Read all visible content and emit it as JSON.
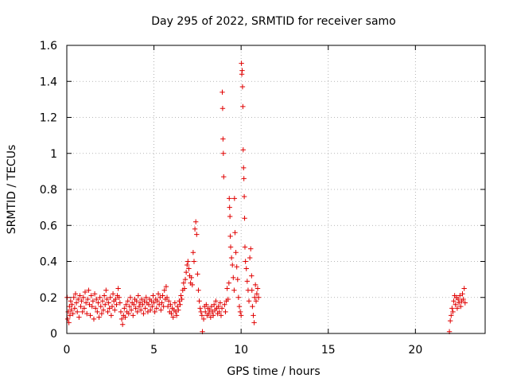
{
  "chart_data": {
    "type": "scatter",
    "title": "Day 295 of 2022, SRMTID for receiver samo",
    "xlabel": "GPS time / hours",
    "ylabel": "SRMTID / TECUs",
    "xlim": [
      0,
      24
    ],
    "ylim": [
      0,
      1.6
    ],
    "xticks": [
      0,
      5,
      10,
      15,
      20
    ],
    "xtick_labels": [
      "0",
      "5",
      "10",
      "15",
      "20"
    ],
    "yticks": [
      0,
      0.2,
      0.4,
      0.6,
      0.8,
      1,
      1.2,
      1.4,
      1.6
    ],
    "ytick_labels": [
      "0",
      "0.2",
      "0.4",
      "0.6",
      "0.8",
      "1",
      "1.2",
      "1.4",
      "1.6"
    ],
    "grid": true,
    "marker": "plus",
    "color": "#e00000",
    "series": [
      {
        "name": "SRMTID",
        "points": [
          [
            0.02,
            0.2
          ],
          [
            0.05,
            0.08
          ],
          [
            0.08,
            0.12
          ],
          [
            0.12,
            0.06
          ],
          [
            0.15,
            0.15
          ],
          [
            0.18,
            0.1
          ],
          [
            0.22,
            0.18
          ],
          [
            0.25,
            0.13
          ],
          [
            0.3,
            0.16
          ],
          [
            0.35,
            0.11
          ],
          [
            0.4,
            0.2
          ],
          [
            0.45,
            0.14
          ],
          [
            0.5,
            0.22
          ],
          [
            0.55,
            0.17
          ],
          [
            0.6,
            0.12
          ],
          [
            0.65,
            0.19
          ],
          [
            0.7,
            0.09
          ],
          [
            0.75,
            0.21
          ],
          [
            0.8,
            0.15
          ],
          [
            0.85,
            0.18
          ],
          [
            0.9,
            0.12
          ],
          [
            0.95,
            0.2
          ],
          [
            1.0,
            0.14
          ],
          [
            1.05,
            0.23
          ],
          [
            1.1,
            0.17
          ],
          [
            1.15,
            0.11
          ],
          [
            1.2,
            0.19
          ],
          [
            1.25,
            0.24
          ],
          [
            1.3,
            0.16
          ],
          [
            1.35,
            0.1
          ],
          [
            1.4,
            0.21
          ],
          [
            1.45,
            0.15
          ],
          [
            1.5,
            0.18
          ],
          [
            1.55,
            0.08
          ],
          [
            1.6,
            0.22
          ],
          [
            1.65,
            0.14
          ],
          [
            1.7,
            0.19
          ],
          [
            1.75,
            0.12
          ],
          [
            1.8,
            0.17
          ],
          [
            1.85,
            0.09
          ],
          [
            1.9,
            0.2
          ],
          [
            1.95,
            0.15
          ],
          [
            2.0,
            0.11
          ],
          [
            2.05,
            0.18
          ],
          [
            2.1,
            0.13
          ],
          [
            2.15,
            0.21
          ],
          [
            2.2,
            0.16
          ],
          [
            2.25,
            0.24
          ],
          [
            2.3,
            0.19
          ],
          [
            2.35,
            0.12
          ],
          [
            2.4,
            0.17
          ],
          [
            2.45,
            0.14
          ],
          [
            2.5,
            0.2
          ],
          [
            2.55,
            0.1
          ],
          [
            2.6,
            0.15
          ],
          [
            2.65,
            0.22
          ],
          [
            2.7,
            0.18
          ],
          [
            2.75,
            0.13
          ],
          [
            2.8,
            0.19
          ],
          [
            2.85,
            0.16
          ],
          [
            2.9,
            0.21
          ],
          [
            2.95,
            0.25
          ],
          [
            3.0,
            0.2
          ],
          [
            3.05,
            0.17
          ],
          [
            3.1,
            0.12
          ],
          [
            3.15,
            0.08
          ],
          [
            3.2,
            0.05
          ],
          [
            3.25,
            0.1
          ],
          [
            3.3,
            0.14
          ],
          [
            3.35,
            0.09
          ],
          [
            3.4,
            0.16
          ],
          [
            3.45,
            0.12
          ],
          [
            3.5,
            0.18
          ],
          [
            3.55,
            0.11
          ],
          [
            3.6,
            0.15
          ],
          [
            3.65,
            0.2
          ],
          [
            3.7,
            0.13
          ],
          [
            3.75,
            0.17
          ],
          [
            3.8,
            0.1
          ],
          [
            3.85,
            0.16
          ],
          [
            3.9,
            0.19
          ],
          [
            3.95,
            0.14
          ],
          [
            4.0,
            0.18
          ],
          [
            4.05,
            0.12
          ],
          [
            4.1,
            0.21
          ],
          [
            4.15,
            0.15
          ],
          [
            4.2,
            0.17
          ],
          [
            4.25,
            0.13
          ],
          [
            4.3,
            0.19
          ],
          [
            4.35,
            0.16
          ],
          [
            4.4,
            0.11
          ],
          [
            4.45,
            0.18
          ],
          [
            4.5,
            0.14
          ],
          [
            4.55,
            0.2
          ],
          [
            4.6,
            0.17
          ],
          [
            4.65,
            0.12
          ],
          [
            4.7,
            0.16
          ],
          [
            4.75,
            0.19
          ],
          [
            4.8,
            0.13
          ],
          [
            4.85,
            0.18
          ],
          [
            4.9,
            0.15
          ],
          [
            4.95,
            0.21
          ],
          [
            5.0,
            0.17
          ],
          [
            5.05,
            0.12
          ],
          [
            5.1,
            0.19
          ],
          [
            5.15,
            0.14
          ],
          [
            5.2,
            0.18
          ],
          [
            5.25,
            0.22
          ],
          [
            5.3,
            0.16
          ],
          [
            5.35,
            0.2
          ],
          [
            5.4,
            0.13
          ],
          [
            5.45,
            0.17
          ],
          [
            5.5,
            0.21
          ],
          [
            5.55,
            0.15
          ],
          [
            5.6,
            0.24
          ],
          [
            5.65,
            0.19
          ],
          [
            5.7,
            0.26
          ],
          [
            5.75,
            0.2
          ],
          [
            5.8,
            0.15
          ],
          [
            5.85,
            0.18
          ],
          [
            5.9,
            0.12
          ],
          [
            5.95,
            0.16
          ],
          [
            6.0,
            0.11
          ],
          [
            6.05,
            0.14
          ],
          [
            6.1,
            0.09
          ],
          [
            6.15,
            0.13
          ],
          [
            6.2,
            0.17
          ],
          [
            6.25,
            0.12
          ],
          [
            6.3,
            0.1
          ],
          [
            6.35,
            0.15
          ],
          [
            6.4,
            0.13
          ],
          [
            6.45,
            0.18
          ],
          [
            6.5,
            0.16
          ],
          [
            6.55,
            0.21
          ],
          [
            6.6,
            0.19
          ],
          [
            6.65,
            0.24
          ],
          [
            6.7,
            0.28
          ],
          [
            6.75,
            0.25
          ],
          [
            6.8,
            0.3
          ],
          [
            6.85,
            0.34
          ],
          [
            6.9,
            0.38
          ],
          [
            6.95,
            0.4
          ],
          [
            7.0,
            0.36
          ],
          [
            7.05,
            0.32
          ],
          [
            7.1,
            0.28
          ],
          [
            7.15,
            0.31
          ],
          [
            7.2,
            0.27
          ],
          [
            7.25,
            0.45
          ],
          [
            7.3,
            0.4
          ],
          [
            7.35,
            0.58
          ],
          [
            7.4,
            0.62
          ],
          [
            7.45,
            0.55
          ],
          [
            7.5,
            0.33
          ],
          [
            7.55,
            0.24
          ],
          [
            7.6,
            0.18
          ],
          [
            7.65,
            0.14
          ],
          [
            7.7,
            0.12
          ],
          [
            7.75,
            0.1
          ],
          [
            7.78,
            0.01
          ],
          [
            7.85,
            0.08
          ],
          [
            7.9,
            0.15
          ],
          [
            7.95,
            0.12
          ],
          [
            8.0,
            0.16
          ],
          [
            8.05,
            0.1
          ],
          [
            8.1,
            0.14
          ],
          [
            8.15,
            0.11
          ],
          [
            8.2,
            0.13
          ],
          [
            8.25,
            0.09
          ],
          [
            8.3,
            0.15
          ],
          [
            8.35,
            0.12
          ],
          [
            8.4,
            0.1
          ],
          [
            8.45,
            0.16
          ],
          [
            8.5,
            0.13
          ],
          [
            8.55,
            0.18
          ],
          [
            8.6,
            0.14
          ],
          [
            8.65,
            0.11
          ],
          [
            8.7,
            0.15
          ],
          [
            8.75,
            0.12
          ],
          [
            8.8,
            0.17
          ],
          [
            8.85,
            0.1
          ],
          [
            8.9,
            0.14
          ],
          [
            8.92,
            1.34
          ],
          [
            8.94,
            1.25
          ],
          [
            8.96,
            1.08
          ],
          [
            8.98,
            1.0
          ],
          [
            9.0,
            0.87
          ],
          [
            9.05,
            0.16
          ],
          [
            9.1,
            0.12
          ],
          [
            9.15,
            0.18
          ],
          [
            9.2,
            0.25
          ],
          [
            9.25,
            0.19
          ],
          [
            9.3,
            0.28
          ],
          [
            9.32,
            0.75
          ],
          [
            9.34,
            0.7
          ],
          [
            9.36,
            0.65
          ],
          [
            9.38,
            0.54
          ],
          [
            9.4,
            0.48
          ],
          [
            9.45,
            0.42
          ],
          [
            9.5,
            0.38
          ],
          [
            9.55,
            0.31
          ],
          [
            9.6,
            0.24
          ],
          [
            9.62,
            0.75
          ],
          [
            9.65,
            0.56
          ],
          [
            9.7,
            0.45
          ],
          [
            9.75,
            0.37
          ],
          [
            9.8,
            0.3
          ],
          [
            9.85,
            0.2
          ],
          [
            9.9,
            0.15
          ],
          [
            9.95,
            0.12
          ],
          [
            10.0,
            0.1
          ],
          [
            10.02,
            1.5
          ],
          [
            10.04,
            1.44
          ],
          [
            10.06,
            1.46
          ],
          [
            10.08,
            1.37
          ],
          [
            10.1,
            1.26
          ],
          [
            10.12,
            1.02
          ],
          [
            10.14,
            0.92
          ],
          [
            10.16,
            0.86
          ],
          [
            10.18,
            0.76
          ],
          [
            10.2,
            0.64
          ],
          [
            10.22,
            0.48
          ],
          [
            10.25,
            0.4
          ],
          [
            10.3,
            0.36
          ],
          [
            10.35,
            0.29
          ],
          [
            10.4,
            0.24
          ],
          [
            10.45,
            0.18
          ],
          [
            10.5,
            0.42
          ],
          [
            10.55,
            0.47
          ],
          [
            10.6,
            0.32
          ],
          [
            10.62,
            0.24
          ],
          [
            10.65,
            0.15
          ],
          [
            10.7,
            0.1
          ],
          [
            10.75,
            0.06
          ],
          [
            10.78,
            0.2
          ],
          [
            10.82,
            0.27
          ],
          [
            10.86,
            0.18
          ],
          [
            10.9,
            0.22
          ],
          [
            10.95,
            0.25
          ],
          [
            11.0,
            0.2
          ],
          [
            21.95,
            0.01
          ],
          [
            22.0,
            0.07
          ],
          [
            22.05,
            0.1
          ],
          [
            22.1,
            0.14
          ],
          [
            22.15,
            0.12
          ],
          [
            22.2,
            0.18
          ],
          [
            22.25,
            0.21
          ],
          [
            22.3,
            0.16
          ],
          [
            22.35,
            0.2
          ],
          [
            22.4,
            0.14
          ],
          [
            22.45,
            0.19
          ],
          [
            22.5,
            0.17
          ],
          [
            22.55,
            0.21
          ],
          [
            22.6,
            0.15
          ],
          [
            22.65,
            0.18
          ],
          [
            22.7,
            0.22
          ],
          [
            22.75,
            0.19
          ],
          [
            22.8,
            0.25
          ],
          [
            22.85,
            0.17
          ]
        ]
      }
    ]
  }
}
